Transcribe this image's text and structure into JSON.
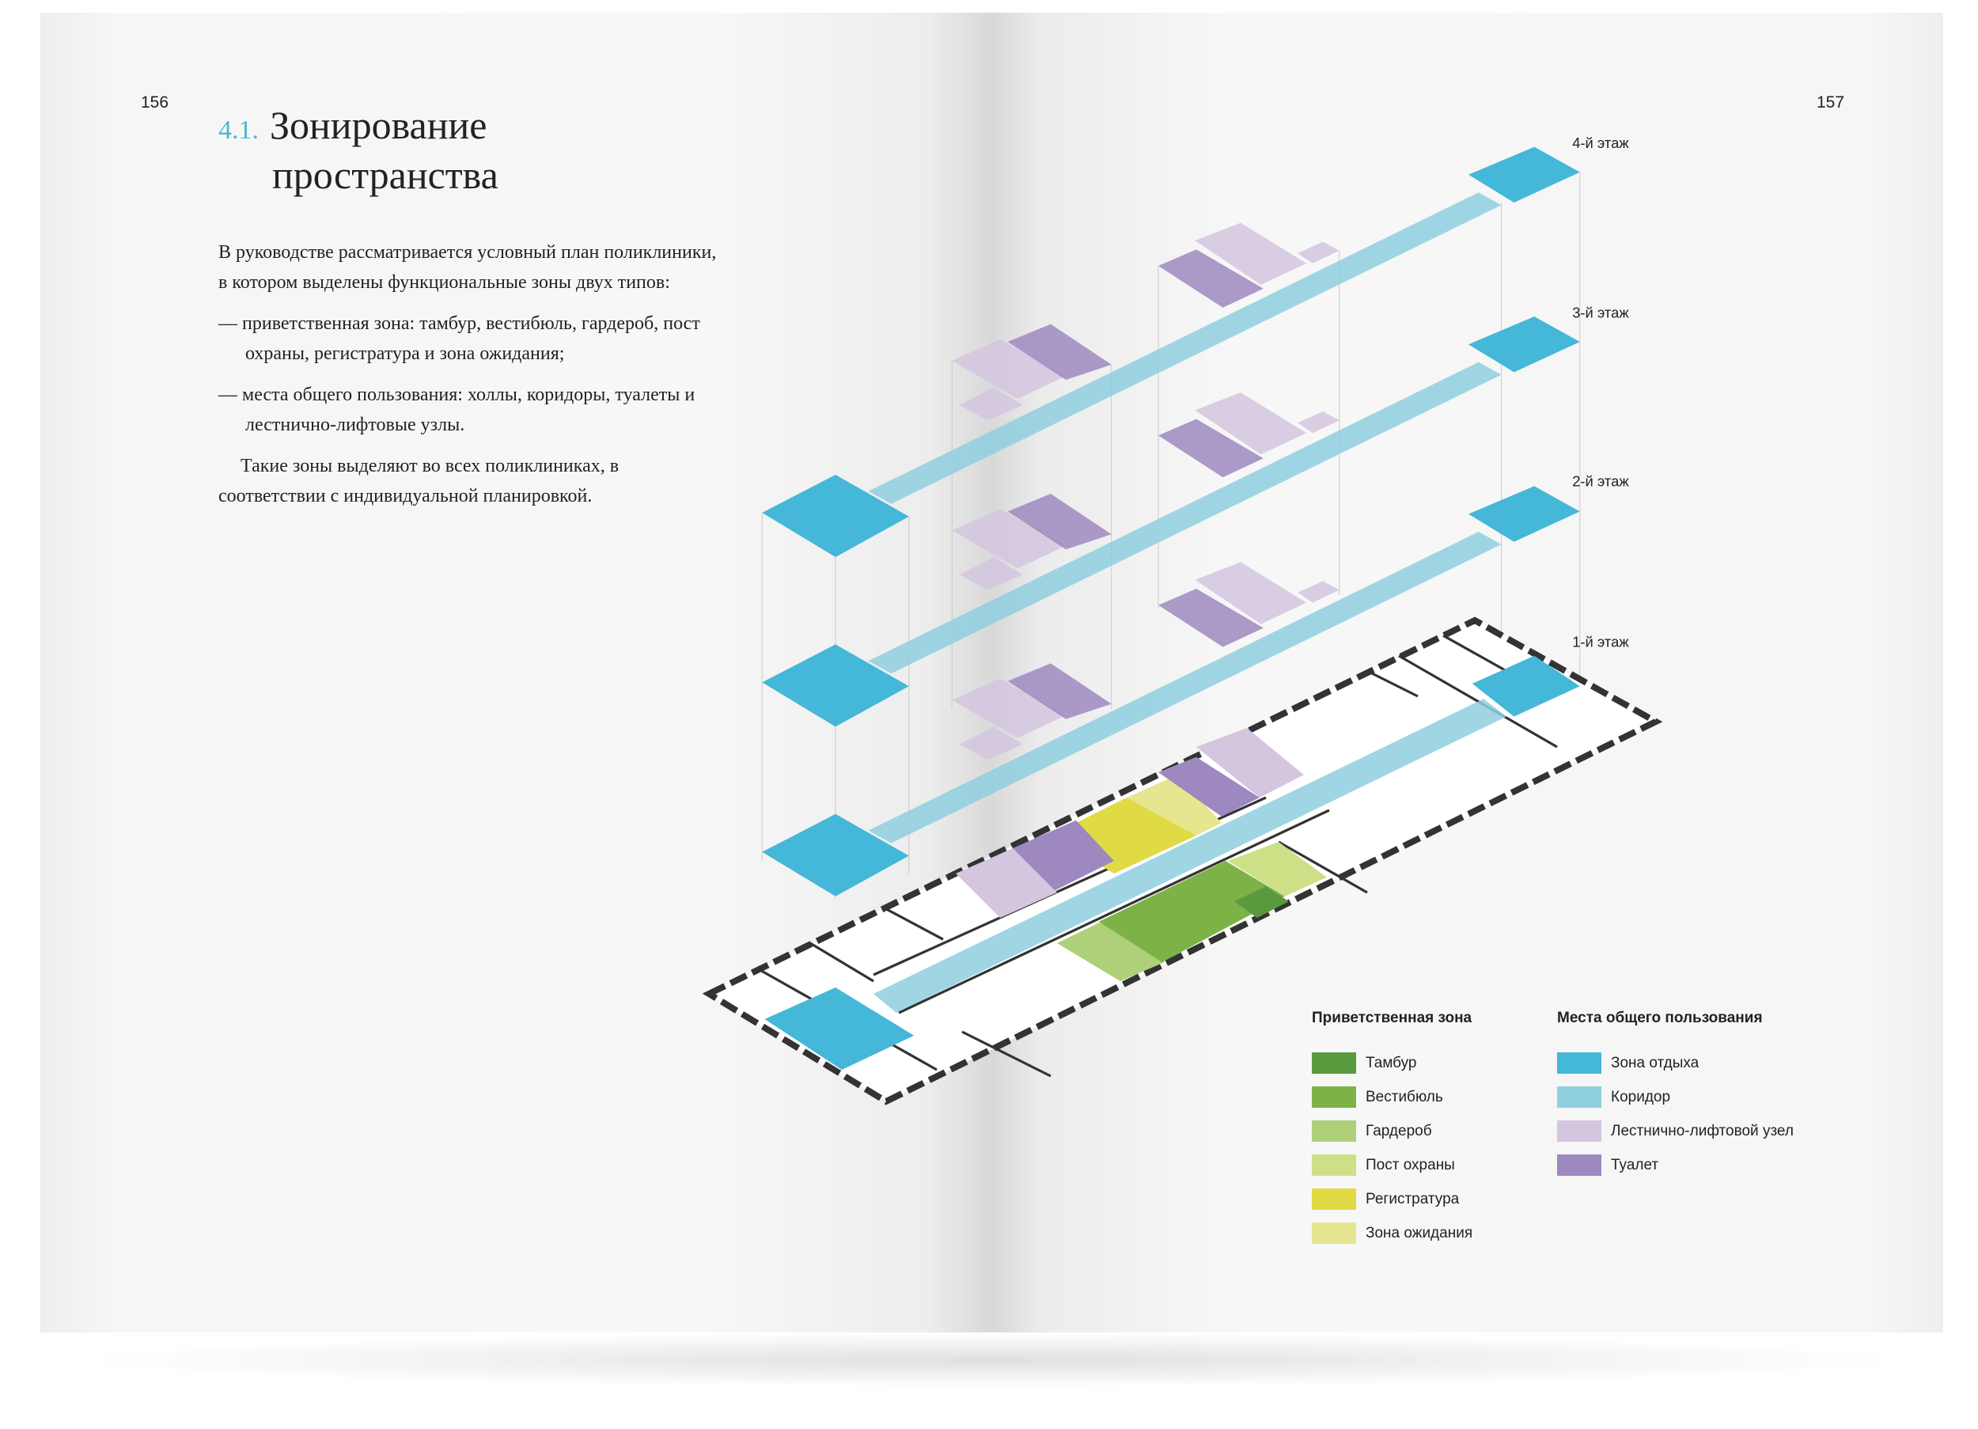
{
  "left_page": {
    "page_number": "156",
    "section_number": "4.1.",
    "title_line1": "Зонирование",
    "title_line2": "пространства",
    "intro": "В руководстве рассматривается условный план поликлиники, в котором выделены функциональные зоны двух типов:",
    "bullets": [
      "— приветственная зона: тамбур, вестибюль, гардероб, пост охраны, регистратура и зона ожидания;",
      "— места общего пользования: холлы, коридоры, туалеты и лестнично-лифтовые узлы."
    ],
    "closing": "Такие зоны выделяют во всех поликлиниках, в соответствии с индивидуальной планировкой."
  },
  "right_page": {
    "page_number": "157",
    "floors": [
      "4-й этаж",
      "3-й этаж",
      "2-й этаж",
      "1-й этаж"
    ],
    "legend": {
      "welcome": {
        "title": "Приветственная зона",
        "items": [
          {
            "label": "Тамбур",
            "color": "#5a9a3e"
          },
          {
            "label": "Вестибюль",
            "color": "#7db346"
          },
          {
            "label": "Гардероб",
            "color": "#aed078"
          },
          {
            "label": "Пост охраны",
            "color": "#cde086"
          },
          {
            "label": "Регистратура",
            "color": "#e0da44"
          },
          {
            "label": "Зона ожидания",
            "color": "#e6e590"
          }
        ]
      },
      "common": {
        "title": "Места общего пользования",
        "items": [
          {
            "label": "Зона отдыха",
            "color": "#45b7d8"
          },
          {
            "label": "Коридор",
            "color": "#8fcfdf"
          },
          {
            "label": "Лестнично-лифтовой узел",
            "color": "#d4c6df"
          },
          {
            "label": "Туалет",
            "color": "#9e88c0"
          }
        ]
      }
    }
  }
}
